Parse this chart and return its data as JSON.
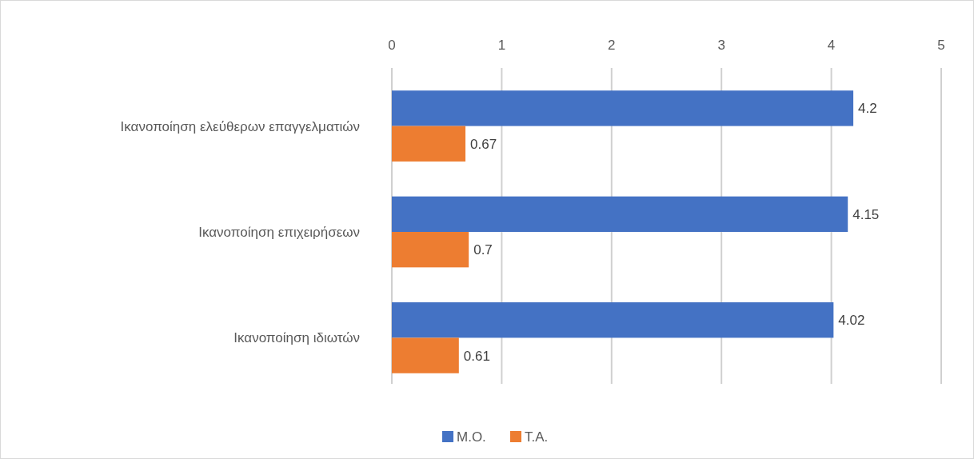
{
  "chart_data": {
    "type": "bar",
    "orientation": "horizontal",
    "categories": [
      "Ικανοποίηση ελεύθερων επαγγελματιών",
      "Ικανοποίηση επιχειρήσεων",
      "Ικανοποίηση ιδιωτών"
    ],
    "series": [
      {
        "name": "Μ.Ο.",
        "color": "#4472c4",
        "values": [
          4.2,
          4.15,
          4.02
        ]
      },
      {
        "name": "Τ.Α.",
        "color": "#ed7d31",
        "values": [
          0.67,
          0.7,
          0.61
        ]
      }
    ],
    "xlim": [
      0,
      5
    ],
    "xticks": [
      0,
      1,
      2,
      3,
      4,
      5
    ],
    "grid": "x",
    "legend": "bottom",
    "data_labels": true
  }
}
